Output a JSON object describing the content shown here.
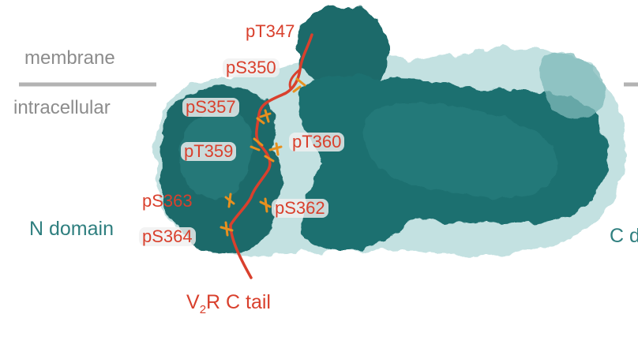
{
  "regions": {
    "membrane": "membrane",
    "intracellular": "intracellular"
  },
  "domains": {
    "n_domain": "N domain",
    "c_domain": "C d"
  },
  "sites": {
    "pT347": "pT347",
    "pS350": "pS350",
    "pS357": "pS357",
    "pT359": "pT359",
    "pT360": "pT360",
    "pS363": "pS363",
    "pS362": "pS362",
    "pS364": "pS364"
  },
  "tail": {
    "prefix": "V",
    "subscript": "2",
    "suffix": "R C tail"
  },
  "colors": {
    "surface_dark": "#1e6b6b",
    "surface_light": "#5fa8a8",
    "surface_halo": "#b9dcdc",
    "peptide": "#d9402d",
    "residue_orange": "#e8901e",
    "membrane_line": "#b3b3b3",
    "region_text": "#8c8c8c",
    "domain_text": "#2f7f7f"
  }
}
